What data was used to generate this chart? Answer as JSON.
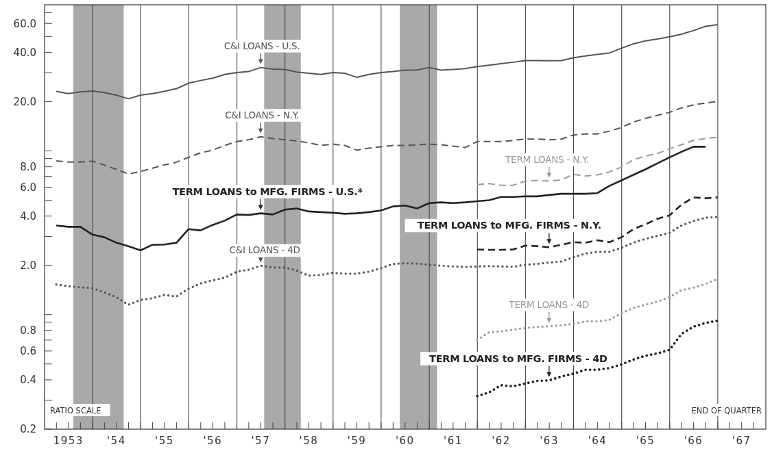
{
  "chart_data": {
    "type": "line",
    "log": "y",
    "grid": "x",
    "legend": false,
    "xlim": [
      "1953-01-01",
      "1968-01-01"
    ],
    "ylim": [
      0.2,
      78
    ],
    "yticks": [
      0.2,
      {
        "value": 0.3,
        "label": null
      },
      0.4,
      {
        "value": 0.5,
        "label": null
      },
      0.6,
      {
        "value": 0.7,
        "label": null
      },
      0.8,
      {
        "value": 0.9,
        "label": null
      },
      {
        "value": 1,
        "label": null
      },
      {
        "value": 2,
        "label": "2.0"
      },
      {
        "value": 3,
        "label": null
      },
      {
        "value": 4,
        "label": "4.0"
      },
      {
        "value": 5,
        "label": null
      },
      {
        "value": 6,
        "label": "6.0"
      },
      {
        "value": 7,
        "label": null
      },
      {
        "value": 8,
        "label": "8.0"
      },
      {
        "value": 9,
        "label": null
      },
      {
        "value": 10,
        "label": null
      },
      {
        "value": 20,
        "label": "20.0"
      },
      {
        "value": 30,
        "label": null
      },
      {
        "value": 40,
        "label": "40.0"
      },
      {
        "value": 50,
        "label": null
      },
      {
        "value": 60,
        "label": "60.0"
      },
      {
        "value": 70,
        "label": null
      }
    ],
    "xticks": [
      {
        "value": "1953-04-01",
        "label": null
      },
      {
        "value": "1953-07-01",
        "label": "1953"
      },
      {
        "value": "1953-10-01",
        "label": null
      },
      {
        "value": "1954-01-01",
        "label": null
      },
      {
        "value": "1954-04-01",
        "label": null
      },
      {
        "value": "1954-07-01",
        "label": "'54"
      },
      {
        "value": "1954-10-01",
        "label": null
      },
      {
        "value": "1955-01-01",
        "label": null
      },
      {
        "value": "1955-04-01",
        "label": null
      },
      {
        "value": "1955-07-01",
        "label": "'55"
      },
      {
        "value": "1955-10-01",
        "label": null
      },
      {
        "value": "1956-01-01",
        "label": null
      },
      {
        "value": "1956-04-01",
        "label": null
      },
      {
        "value": "1956-07-01",
        "label": "'56"
      },
      {
        "value": "1956-10-01",
        "label": null
      },
      {
        "value": "1957-01-01",
        "label": null
      },
      {
        "value": "1957-04-01",
        "label": null
      },
      {
        "value": "1957-07-01",
        "label": "'57"
      },
      {
        "value": "1957-10-01",
        "label": null
      },
      {
        "value": "1958-01-01",
        "label": null
      },
      {
        "value": "1958-04-01",
        "label": null
      },
      {
        "value": "1958-07-01",
        "label": "'58"
      },
      {
        "value": "1958-10-01",
        "label": null
      },
      {
        "value": "1959-01-01",
        "label": null
      },
      {
        "value": "1959-04-01",
        "label": null
      },
      {
        "value": "1959-07-01",
        "label": "'59"
      },
      {
        "value": "1959-10-01",
        "label": null
      },
      {
        "value": "1960-01-01",
        "label": null
      },
      {
        "value": "1960-04-01",
        "label": null
      },
      {
        "value": "1960-07-01",
        "label": "'60"
      },
      {
        "value": "1960-10-01",
        "label": null
      },
      {
        "value": "1961-01-01",
        "label": null
      },
      {
        "value": "1961-04-01",
        "label": null
      },
      {
        "value": "1961-07-01",
        "label": "'61"
      },
      {
        "value": "1961-10-01",
        "label": null
      },
      {
        "value": "1962-01-01",
        "label": null
      },
      {
        "value": "1962-04-01",
        "label": null
      },
      {
        "value": "1962-07-01",
        "label": "'62"
      },
      {
        "value": "1962-10-01",
        "label": null
      },
      {
        "value": "1963-01-01",
        "label": null
      },
      {
        "value": "1963-04-01",
        "label": null
      },
      {
        "value": "1963-07-01",
        "label": "'63"
      },
      {
        "value": "1963-10-01",
        "label": null
      },
      {
        "value": "1964-01-01",
        "label": null
      },
      {
        "value": "1964-04-01",
        "label": null
      },
      {
        "value": "1964-07-01",
        "label": "'64"
      },
      {
        "value": "1964-10-01",
        "label": null
      },
      {
        "value": "1965-01-01",
        "label": null
      },
      {
        "value": "1965-04-01",
        "label": null
      },
      {
        "value": "1965-07-01",
        "label": "'65"
      },
      {
        "value": "1965-10-01",
        "label": null
      },
      {
        "value": "1966-01-01",
        "label": null
      },
      {
        "value": "1966-04-01",
        "label": null
      },
      {
        "value": "1966-07-01",
        "label": "'66"
      },
      {
        "value": "1966-10-01",
        "label": null
      },
      {
        "value": "1967-01-01",
        "label": null
      },
      {
        "value": "1967-04-01",
        "label": null
      },
      {
        "value": "1967-07-01",
        "label": "'67"
      },
      {
        "value": "1967-10-01",
        "label": null
      }
    ],
    "x": [
      "1953-03-31",
      "1953-06-30",
      "1953-09-30",
      "1953-12-31",
      "1954-03-31",
      "1954-06-30",
      "1954-09-30",
      "1954-12-31",
      "1955-03-31",
      "1955-06-30",
      "1955-09-30",
      "1955-12-31",
      "1956-03-31",
      "1956-06-30",
      "1956-09-30",
      "1956-12-31",
      "1957-03-31",
      "1957-06-30",
      "1957-09-30",
      "1957-12-31",
      "1958-03-31",
      "1958-06-30",
      "1958-09-30",
      "1958-12-31",
      "1959-03-31",
      "1959-06-30",
      "1959-09-30",
      "1959-12-31",
      "1960-03-31",
      "1960-06-30",
      "1960-09-30",
      "1960-12-31",
      "1961-03-31",
      "1961-06-30",
      "1961-09-30",
      "1961-12-31",
      "1962-03-31",
      "1962-06-30",
      "1962-09-30",
      "1962-12-31",
      "1963-03-31",
      "1963-06-30",
      "1963-09-30",
      "1963-12-31",
      "1964-03-31",
      "1964-06-30",
      "1964-09-30",
      "1964-12-31",
      "1965-03-31",
      "1965-06-30",
      "1965-09-30",
      "1965-12-31",
      "1966-03-31",
      "1966-06-30",
      "1966-09-30",
      "1966-12-31"
    ],
    "series": [
      {
        "name": "C&I LOANS - U.S.",
        "color": "#555555",
        "line_style": "solid",
        "values": [
          23.1,
          22.4,
          22.9,
          23.2,
          22.7,
          21.9,
          20.8,
          21.9,
          22.4,
          23.1,
          24.0,
          25.9,
          26.9,
          27.8,
          29.3,
          30.1,
          30.5,
          32.3,
          31.6,
          31.4,
          30.3,
          29.8,
          29.3,
          30.1,
          29.8,
          28.1,
          29.3,
          30.1,
          30.5,
          31.1,
          31.2,
          32.3,
          31.1,
          31.4,
          31.8,
          32.7,
          33.4,
          34.1,
          34.8,
          35.6,
          35.6,
          35.5,
          35.6,
          37.0,
          38.0,
          38.8,
          39.6,
          42.4,
          45.0,
          47.0,
          48.2,
          49.7,
          51.6,
          54.3,
          57.6,
          59.0
        ]
      },
      {
        "name": "C&I LOANS - N.Y.",
        "color": "#555555",
        "line_style": "dashed",
        "values": [
          8.69,
          8.54,
          8.54,
          8.66,
          8.2,
          7.71,
          7.24,
          7.49,
          7.84,
          8.2,
          8.54,
          9.14,
          9.73,
          10.1,
          10.8,
          11.4,
          11.7,
          12.2,
          11.9,
          11.7,
          11.5,
          11.2,
          10.8,
          11.0,
          10.8,
          10.1,
          10.4,
          10.6,
          10.8,
          10.8,
          10.9,
          11.0,
          10.9,
          10.7,
          10.5,
          11.4,
          11.4,
          11.4,
          11.6,
          11.8,
          11.8,
          11.7,
          11.8,
          12.5,
          12.7,
          12.7,
          13.2,
          13.9,
          15.0,
          15.8,
          16.5,
          17.2,
          18.3,
          19.1,
          19.6,
          20.1
        ]
      },
      {
        "name": "TERM LOANS to MFG. FIRMS - U.S.*",
        "color": "#222222",
        "line_style": "solid",
        "values": [
          3.5,
          3.44,
          3.44,
          3.08,
          2.97,
          2.75,
          2.62,
          2.47,
          2.67,
          2.68,
          2.75,
          3.33,
          3.27,
          3.53,
          3.75,
          4.09,
          4.06,
          4.16,
          4.09,
          4.38,
          4.45,
          4.27,
          4.23,
          4.19,
          4.13,
          4.16,
          4.23,
          4.33,
          4.58,
          4.64,
          4.45,
          4.8,
          4.85,
          4.8,
          4.85,
          4.93,
          5.0,
          5.23,
          5.23,
          5.28,
          5.28,
          5.38,
          5.47,
          5.47,
          5.47,
          5.52,
          6.11,
          6.61,
          7.14,
          7.71,
          8.4,
          9.14,
          9.86,
          10.6,
          10.6,
          null
        ]
      },
      {
        "name": "C&I LOANS - 4D",
        "color": "#555555",
        "line_style": "dotted",
        "values": [
          1.53,
          1.49,
          1.47,
          1.45,
          1.37,
          1.28,
          1.15,
          1.23,
          1.26,
          1.32,
          1.29,
          1.44,
          1.55,
          1.62,
          1.68,
          1.83,
          1.88,
          1.99,
          1.94,
          1.94,
          1.86,
          1.73,
          1.75,
          1.8,
          1.78,
          1.78,
          1.83,
          1.92,
          2.04,
          2.06,
          2.05,
          2.02,
          1.99,
          1.97,
          1.96,
          1.97,
          1.98,
          1.97,
          1.96,
          2.02,
          2.04,
          2.08,
          2.11,
          2.24,
          2.36,
          2.42,
          2.42,
          2.56,
          2.75,
          2.9,
          3.03,
          3.16,
          3.5,
          3.73,
          3.91,
          3.95
        ]
      },
      {
        "name": "TERM LOANS - N.Y.",
        "color": "#999999",
        "line_style": "dashed",
        "x": [
          "1961-12-31",
          "1962-03-31",
          "1962-06-30",
          "1962-09-30",
          "1962-12-31",
          "1963-03-31",
          "1963-06-30",
          "1963-09-30",
          "1963-12-31",
          "1964-03-31",
          "1964-06-30",
          "1964-09-30",
          "1964-12-31",
          "1965-03-31",
          "1965-06-30",
          "1965-09-30",
          "1965-12-31",
          "1966-03-31",
          "1966-06-30",
          "1966-09-30",
          "1966-12-31"
        ],
        "values": [
          6.23,
          6.32,
          6.17,
          6.17,
          6.54,
          6.61,
          6.54,
          6.65,
          7.19,
          7.02,
          7.14,
          7.44,
          7.96,
          8.84,
          9.3,
          9.63,
          10.3,
          10.9,
          11.6,
          11.9,
          12.1
        ]
      },
      {
        "name": "TERM LOANS to MFG. FIRMS - N.Y.",
        "color": "#222222",
        "line_style": "dashed",
        "x": [
          "1961-12-31",
          "1962-03-31",
          "1962-06-30",
          "1962-09-30",
          "1962-12-31",
          "1963-03-31",
          "1963-06-30",
          "1963-09-30",
          "1963-12-31",
          "1964-03-31",
          "1964-06-30",
          "1964-09-30",
          "1964-12-31",
          "1965-03-31",
          "1965-06-30",
          "1965-09-30",
          "1965-12-31",
          "1966-03-31",
          "1966-06-30",
          "1966-09-30",
          "1966-12-31"
        ],
        "values": [
          2.5,
          2.49,
          2.49,
          2.5,
          2.64,
          2.62,
          2.58,
          2.67,
          2.77,
          2.75,
          2.85,
          2.77,
          2.97,
          3.33,
          3.56,
          3.85,
          4.04,
          4.69,
          5.2,
          5.14,
          5.2
        ]
      },
      {
        "name": "TERM LOANS - 4D",
        "color": "#999999",
        "line_style": "dotted",
        "x": [
          "1961-12-31",
          "1962-03-31",
          "1962-06-30",
          "1962-09-30",
          "1962-12-31",
          "1963-03-31",
          "1963-06-30",
          "1963-09-30",
          "1963-12-31",
          "1964-03-31",
          "1964-06-30",
          "1964-09-30",
          "1964-12-31",
          "1965-03-31",
          "1965-06-30",
          "1965-09-30",
          "1965-12-31",
          "1966-03-31",
          "1966-06-30",
          "1966-09-30",
          "1966-12-31"
        ],
        "values": [
          0.7,
          0.78,
          0.79,
          0.81,
          0.83,
          0.84,
          0.85,
          0.86,
          0.88,
          0.91,
          0.91,
          0.93,
          1.02,
          1.1,
          1.15,
          1.2,
          1.28,
          1.41,
          1.46,
          1.54,
          1.65
        ]
      },
      {
        "name": "TERM LOANS to MFG. FIRMS - 4D",
        "color": "#222222",
        "line_style": "dotted",
        "x": [
          "1961-12-31",
          "1962-03-31",
          "1962-06-30",
          "1962-09-30",
          "1962-12-31",
          "1963-03-31",
          "1963-06-30",
          "1963-09-30",
          "1963-12-31",
          "1964-03-31",
          "1964-06-30",
          "1964-09-30",
          "1964-12-31",
          "1965-03-31",
          "1965-06-30",
          "1965-09-30",
          "1965-12-31",
          "1966-03-31",
          "1966-06-30",
          "1966-09-30",
          "1966-12-31"
        ],
        "values": [
          0.318,
          0.335,
          0.371,
          0.365,
          0.38,
          0.394,
          0.397,
          0.419,
          0.436,
          0.461,
          0.461,
          0.472,
          0.497,
          0.532,
          0.561,
          0.58,
          0.61,
          0.762,
          0.845,
          0.89,
          0.92
        ]
      }
    ],
    "bands": [
      {
        "axis": "x",
        "from": "1953-08-07",
        "to": "1954-08-25",
        "color": "#a9a9a9"
      },
      {
        "axis": "x",
        "from": "1957-07-27",
        "to": "1958-05-01",
        "color": "#a9a9a9"
      },
      {
        "axis": "x",
        "from": "1960-05-22",
        "to": "1961-03-01",
        "color": "#a9a9a9"
      }
    ],
    "annotations": [
      "RATIO SCALE",
      "END OF QUARTER"
    ]
  }
}
